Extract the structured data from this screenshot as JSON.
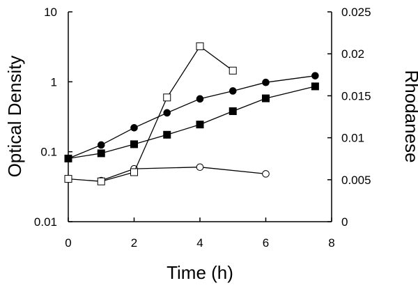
{
  "chart_data": {
    "type": "line",
    "xlabel": "Time (h)",
    "ylabel_left": "Optical Density",
    "ylabel_right": "Rhodanese",
    "xlim": [
      0,
      8
    ],
    "ylim_left": [
      0.01,
      10
    ],
    "ylim_right": [
      0,
      0.025
    ],
    "y_left_scale": "log",
    "grid": false,
    "x_ticks": [
      0,
      2,
      4,
      6,
      8
    ],
    "x_tick_labels": [
      "0",
      "2",
      "4",
      "6",
      "8"
    ],
    "y_left_ticks": [
      0.01,
      0.1,
      1,
      10
    ],
    "y_left_tick_labels": [
      "0.01",
      "0.1",
      "1",
      "10"
    ],
    "y_right_ticks": [
      0,
      0.005,
      0.01,
      0.015,
      0.02,
      0.025
    ],
    "y_right_tick_labels": [
      "0",
      "0.005",
      "0.01",
      "0.015",
      "0.02",
      "0.025"
    ],
    "series": [
      {
        "axis": "left",
        "marker": "filled-circle",
        "points": [
          [
            0,
            0.08
          ],
          [
            1,
            0.125
          ],
          [
            2,
            0.22
          ],
          [
            3,
            0.36
          ],
          [
            4,
            0.57
          ],
          [
            5,
            0.74
          ],
          [
            6,
            0.98
          ],
          [
            7.5,
            1.22
          ]
        ]
      },
      {
        "axis": "left",
        "marker": "filled-square",
        "points": [
          [
            0,
            0.08
          ],
          [
            1,
            0.095
          ],
          [
            2,
            0.128
          ],
          [
            3,
            0.175
          ],
          [
            4,
            0.245
          ],
          [
            5,
            0.38
          ],
          [
            6,
            0.58
          ],
          [
            7.5,
            0.86
          ]
        ]
      },
      {
        "axis": "right",
        "marker": "open-circle",
        "points": [
          [
            1,
            0.0049
          ],
          [
            2,
            0.0063
          ],
          [
            4,
            0.0065
          ],
          [
            6,
            0.0057
          ]
        ]
      },
      {
        "axis": "right",
        "marker": "open-square",
        "points": [
          [
            0,
            0.0051
          ],
          [
            1,
            0.0048
          ],
          [
            2,
            0.0059
          ],
          [
            3,
            0.0148
          ],
          [
            4,
            0.0209
          ],
          [
            5,
            0.018
          ]
        ]
      }
    ]
  }
}
